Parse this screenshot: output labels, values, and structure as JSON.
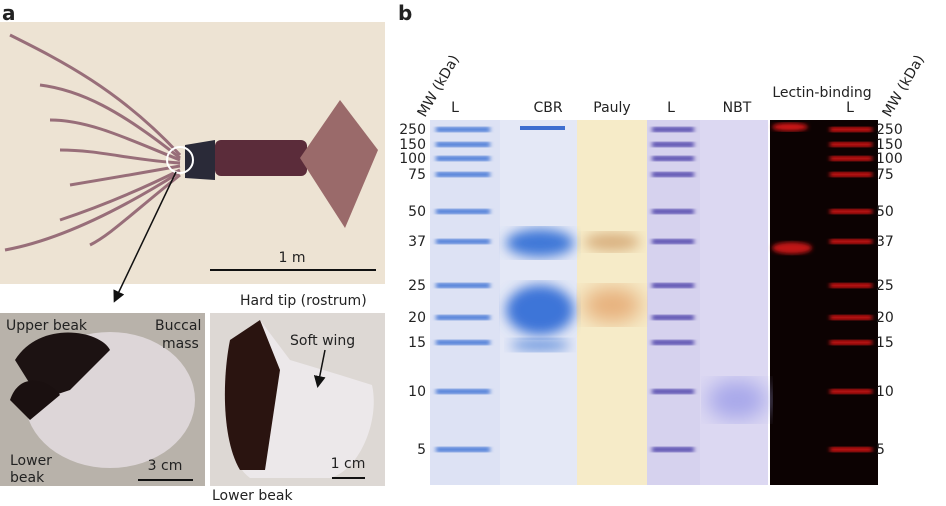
{
  "panel_a": {
    "label": "a",
    "scale_bar": "1 m",
    "photo_left": {
      "upper_beak": "Upper beak",
      "buccal_mass": [
        "Buccal",
        "mass"
      ],
      "lower_beak": [
        "Lower",
        "beak"
      ],
      "scale_bar": "3 cm"
    },
    "photo_right": {
      "hard_tip": "Hard tip (rostrum)",
      "soft_wing": "Soft wing",
      "scale_bar": "1 cm",
      "lower_beak": "Lower beak"
    }
  },
  "panel_b": {
    "label": "b",
    "axis_label_left": "MW (kDa)",
    "axis_label_right": "MW (kDa)",
    "lanes": [
      "L",
      "CBR",
      "Pauly",
      "L",
      "NBT"
    ],
    "lectin_header": "Lectin-binding",
    "lectin_lane": "L",
    "mw_left": [
      250,
      150,
      100,
      75,
      50,
      37,
      25,
      20,
      15,
      10,
      5
    ],
    "mw_right": [
      250,
      150,
      100,
      75,
      50,
      37,
      25,
      20,
      15,
      10,
      5
    ]
  }
}
